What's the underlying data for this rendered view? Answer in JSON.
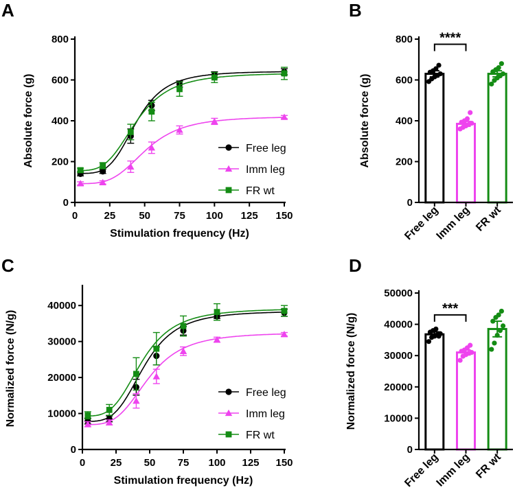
{
  "figure": {
    "panels": [
      "A",
      "B",
      "C",
      "D"
    ]
  },
  "chart_data": [
    {
      "panel": "A",
      "type": "line",
      "xlabel": "Stimulation frequency (Hz)",
      "ylabel": "Absolute force (g)",
      "xlim": [
        0,
        150
      ],
      "ylim": [
        0,
        800
      ],
      "xticks": [
        0,
        25,
        50,
        75,
        100,
        125,
        150
      ],
      "yticks": [
        0,
        200,
        400,
        600,
        800
      ],
      "x": [
        4,
        20,
        40,
        55,
        75,
        100,
        150
      ],
      "legend_position": "bottom-right",
      "series": [
        {
          "name": "Free leg",
          "marker": "circle",
          "color": "#000000",
          "values": [
            140,
            152,
            325,
            475,
            580,
            625,
            640
          ],
          "errors": [
            10,
            10,
            35,
            25,
            15,
            15,
            15
          ],
          "fit": {
            "bottom": 142,
            "top": 643,
            "ec50": 44,
            "hill": 4.2
          }
        },
        {
          "name": "Imm leg",
          "marker": "triangle",
          "color": "#ee44ee",
          "values": [
            93,
            98,
            175,
            268,
            355,
            397,
            418
          ],
          "errors": [
            8,
            8,
            28,
            28,
            20,
            15,
            8
          ],
          "fit": {
            "bottom": 92,
            "top": 422,
            "ec50": 51,
            "hill": 3.8
          }
        },
        {
          "name": "FR wt",
          "marker": "square",
          "color": "#148c14",
          "values": [
            158,
            180,
            345,
            445,
            555,
            612,
            632
          ],
          "errors": [
            10,
            15,
            38,
            45,
            35,
            25,
            30
          ],
          "fit": {
            "bottom": 156,
            "top": 635,
            "ec50": 44,
            "hill": 3.6
          }
        }
      ]
    },
    {
      "panel": "B",
      "type": "bar",
      "ylabel": "Absolute force (g)",
      "ylim": [
        0,
        800
      ],
      "yticks": [
        0,
        200,
        400,
        600,
        800
      ],
      "categories": [
        "Free leg",
        "Imm leg",
        "FR wt"
      ],
      "values": [
        630,
        385,
        630
      ],
      "errors": [
        15,
        12,
        15
      ],
      "colors": [
        "#000000",
        "#ee44ee",
        "#148c14"
      ],
      "points": [
        [
          592,
          605,
          615,
          622,
          630,
          638,
          645,
          655,
          672
        ],
        [
          360,
          368,
          375,
          382,
          388,
          393,
          400,
          410,
          440
        ],
        [
          580,
          598,
          610,
          620,
          630,
          640,
          650,
          660,
          680
        ]
      ],
      "significance": {
        "from": 0,
        "to": 1,
        "label": "****",
        "y": 775
      }
    },
    {
      "panel": "C",
      "type": "line",
      "xlabel": "Stimulation frequency (Hz)",
      "ylabel": "Normalized force (N/g)",
      "xlim": [
        0,
        150
      ],
      "ylim": [
        0,
        45000
      ],
      "xticks": [
        0,
        25,
        50,
        75,
        100,
        125,
        150
      ],
      "yticks": [
        0,
        10000,
        20000,
        30000,
        40000
      ],
      "x": [
        4,
        20,
        40,
        55,
        75,
        100,
        150
      ],
      "legend_position": "bottom-right",
      "series": [
        {
          "name": "Free leg",
          "marker": "circle",
          "color": "#000000",
          "values": [
            7900,
            8500,
            17300,
            26000,
            33000,
            37000,
            38000
          ],
          "errors": [
            800,
            800,
            2200,
            2500,
            1200,
            600,
            1000
          ],
          "fit": {
            "bottom": 7800,
            "top": 38500,
            "ec50": 46,
            "hill": 3.8
          }
        },
        {
          "name": "Imm leg",
          "marker": "triangle",
          "color": "#ee44ee",
          "values": [
            7000,
            7500,
            13500,
            20300,
            27300,
            30500,
            32000
          ],
          "errors": [
            700,
            700,
            2000,
            2000,
            1200,
            700,
            500
          ],
          "fit": {
            "bottom": 6900,
            "top": 32500,
            "ec50": 49,
            "hill": 3.7
          }
        },
        {
          "name": "FR wt",
          "marker": "square",
          "color": "#148c14",
          "values": [
            9500,
            11000,
            21000,
            28000,
            34300,
            38200,
            38500
          ],
          "errors": [
            1000,
            1500,
            4500,
            4500,
            2800,
            2300,
            1500
          ],
          "fit": {
            "bottom": 9300,
            "top": 39200,
            "ec50": 44,
            "hill": 3.6
          }
        }
      ]
    },
    {
      "panel": "D",
      "type": "bar",
      "ylabel": "Normalized force (N/g)",
      "ylim": [
        0,
        50000
      ],
      "yticks": [
        0,
        10000,
        20000,
        30000,
        40000,
        50000
      ],
      "categories": [
        "Free leg",
        "Imm leg",
        "FR wt"
      ],
      "values": [
        36800,
        31000,
        38500
      ],
      "errors": [
        800,
        800,
        2500
      ],
      "colors": [
        "#000000",
        "#ee44ee",
        "#148c14"
      ],
      "points": [
        [
          34500,
          35800,
          36200,
          36700,
          37000,
          37500,
          38000,
          38500,
          36200
        ],
        [
          28500,
          29800,
          30300,
          30800,
          31000,
          31400,
          31800,
          32500,
          33300
        ],
        [
          32000,
          34000,
          36500,
          38000,
          39500,
          41000,
          42200,
          43000,
          44200
        ]
      ],
      "significance": {
        "from": 0,
        "to": 1,
        "label": "***",
        "y": 43000
      }
    }
  ]
}
